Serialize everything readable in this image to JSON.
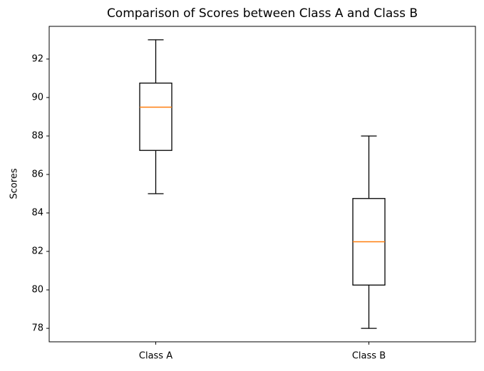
{
  "chart_data": {
    "type": "box",
    "title": "Comparison of Scores between Class A and Class B",
    "ylabel": "Scores",
    "categories": [
      "Class A",
      "Class B"
    ],
    "boxes": [
      {
        "min": 85,
        "q1": 87.25,
        "median": 89.5,
        "q3": 90.75,
        "max": 93
      },
      {
        "min": 78,
        "q1": 80.25,
        "median": 82.5,
        "q3": 84.75,
        "max": 88
      }
    ],
    "box_color": "#000000",
    "median_color": "#ff7f0e",
    "ylim": [
      77.3,
      93.7
    ],
    "yticks": [
      78,
      80,
      82,
      84,
      86,
      88,
      90,
      92
    ],
    "grid": false
  }
}
